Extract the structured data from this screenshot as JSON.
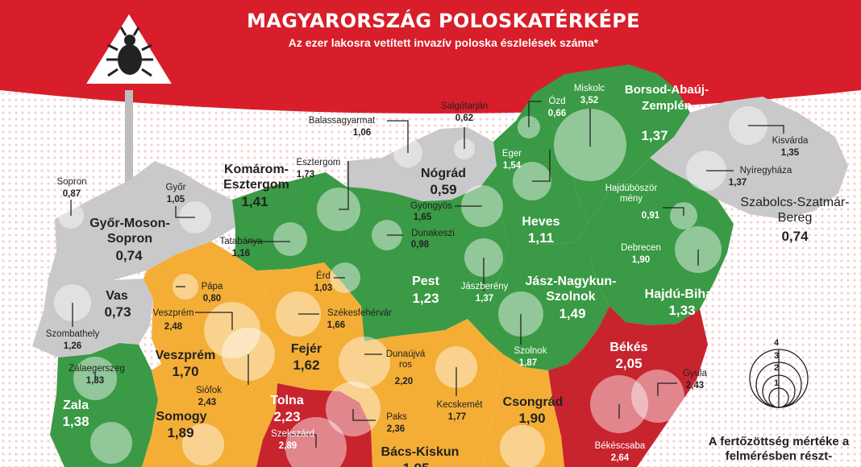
{
  "header": {
    "title": "MAGYARORSZÁG POLOSKATÉRKÉPE",
    "subtitle": "Az ezer lakosra vetített invazív poloska észlelések száma*"
  },
  "colors": {
    "banner": "#d81e2a",
    "low": "#c9c9cb",
    "medium": "#3a9a45",
    "high": "#f4ae35",
    "very_high": "#c8242e"
  },
  "counties": [
    {
      "name": "Borsod-Abaúj-Zemplén",
      "value": "1,37",
      "level": "medium"
    },
    {
      "name": "Nógrád",
      "value": "0,59",
      "level": "low"
    },
    {
      "name": "Komárom-Esztergom",
      "value": "1,41",
      "level": "medium"
    },
    {
      "name": "Heves",
      "value": "1,11",
      "level": "medium"
    },
    {
      "name": "Szabolcs-Szatmár-Bereg",
      "value": "0,74",
      "level": "low"
    },
    {
      "name": "Győr-Moson-Sopron",
      "value": "0,74",
      "level": "low"
    },
    {
      "name": "Pest",
      "value": "1,23",
      "level": "medium"
    },
    {
      "name": "Jász-Nagykun-Szolnok",
      "value": "1,49",
      "level": "medium"
    },
    {
      "name": "Hajdú-Bihar",
      "value": "1,33",
      "level": "medium"
    },
    {
      "name": "Vas",
      "value": "0,73",
      "level": "low"
    },
    {
      "name": "Veszprém",
      "value": "1,70",
      "level": "high"
    },
    {
      "name": "Fejér",
      "value": "1,62",
      "level": "high"
    },
    {
      "name": "Békés",
      "value": "2,05",
      "level": "very_high"
    },
    {
      "name": "Zala",
      "value": "1,38",
      "level": "medium"
    },
    {
      "name": "Somogy",
      "value": "1,89",
      "level": "high"
    },
    {
      "name": "Tolna",
      "value": "2,23",
      "level": "very_high"
    },
    {
      "name": "Csongrád",
      "value": "1,90",
      "level": "high"
    },
    {
      "name": "Bács-Kiskun",
      "value": "1,95",
      "level": "high"
    }
  ],
  "towns": [
    {
      "name": "Miskolc",
      "value": "3,52"
    },
    {
      "name": "Ózd",
      "value": "0,66"
    },
    {
      "name": "Salgótarján",
      "value": "0,62"
    },
    {
      "name": "Balassagyarmat",
      "value": "1,06"
    },
    {
      "name": "Eger",
      "value": "1,54"
    },
    {
      "name": "Kisvárda",
      "value": "1,35"
    },
    {
      "name": "Nyíregyháza",
      "value": "1,37"
    },
    {
      "name": "Esztergom",
      "value": "1,73"
    },
    {
      "name": "Sopron",
      "value": "0,87"
    },
    {
      "name": "Győr",
      "value": "1,05"
    },
    {
      "name": "Gyöngyös",
      "value": "1,65"
    },
    {
      "name": "Hajdúböszörmény",
      "value": "0,91"
    },
    {
      "name": "Dunakeszi",
      "value": "0,98"
    },
    {
      "name": "Tatabánya",
      "value": "1,16"
    },
    {
      "name": "Debrecen",
      "value": "1,90"
    },
    {
      "name": "Érd",
      "value": "1,03"
    },
    {
      "name": "Pápa",
      "value": "0,80"
    },
    {
      "name": "Jászberény",
      "value": "1,37"
    },
    {
      "name": "Székesfehérvár",
      "value": "1,66"
    },
    {
      "name": "Veszprém",
      "value": "2,48"
    },
    {
      "name": "Szombathely",
      "value": "1,26"
    },
    {
      "name": "Zalaegerszeg",
      "value": "1,83"
    },
    {
      "name": "Dunaújváros",
      "value": "2,20"
    },
    {
      "name": "Szolnok",
      "value": "1,87"
    },
    {
      "name": "Gyula",
      "value": "2,43"
    },
    {
      "name": "Siófok",
      "value": "2,43"
    },
    {
      "name": "Paks",
      "value": "2,36"
    },
    {
      "name": "Kecskemét",
      "value": "1,77"
    },
    {
      "name": "Szekszárd",
      "value": "2,89"
    },
    {
      "name": "Békéscsaba",
      "value": "2,64"
    }
  ],
  "legend": {
    "scale": [
      "4",
      "3",
      "2",
      "1"
    ],
    "note": "A fertőzöttség mértéke a felmérésben részt-"
  }
}
